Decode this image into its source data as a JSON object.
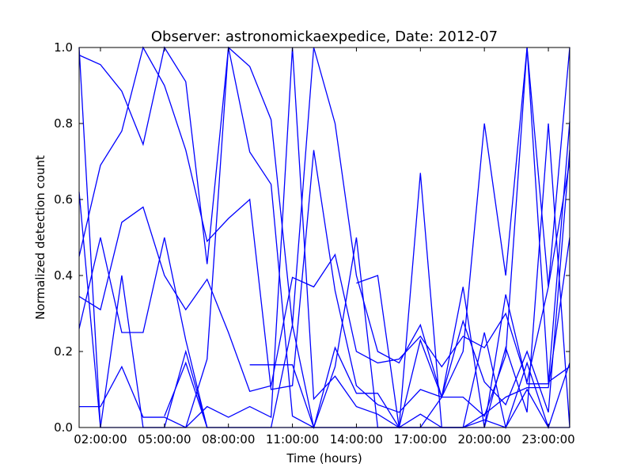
{
  "chart_data": {
    "type": "line",
    "title": "Observer: astronomickaexpedice, Date: 2012-07",
    "xlabel": "Time (hours)",
    "ylabel": "Normalized detection count",
    "xlim": [
      1,
      24
    ],
    "ylim": [
      0,
      1
    ],
    "x_ticks": [
      2,
      5,
      8,
      11,
      14,
      17,
      20,
      23
    ],
    "x_tick_labels": [
      "02:00:00",
      "05:00:00",
      "08:00:00",
      "11:00:00",
      "14:00:00",
      "17:00:00",
      "20:00:00",
      "23:00:00"
    ],
    "y_ticks": [
      0,
      0.2,
      0.4,
      0.6,
      0.8,
      1.0
    ],
    "y_tick_labels": [
      "0.0",
      "0.2",
      "0.4",
      "0.6",
      "0.8",
      "1.0"
    ],
    "line_color": "#0000ff",
    "series": [
      {
        "name": "series-1",
        "x": [
          1,
          2,
          3,
          4,
          5,
          6,
          7,
          8,
          9,
          10,
          11,
          12,
          13,
          14,
          15,
          16,
          17,
          18,
          19,
          20,
          21,
          22,
          23,
          24
        ],
        "values": [
          0.98,
          0.955,
          0.885,
          0.745,
          1.0,
          0.91,
          0.43,
          1.0,
          0.95,
          0.81,
          0.27,
          1.0,
          0.8,
          0.4,
          0.2,
          0.17,
          0.27,
          0.08,
          0.2,
          0.8,
          0.4,
          1.0,
          0.37,
          1.0
        ]
      },
      {
        "name": "series-2",
        "x": [
          1,
          2,
          3,
          4,
          5,
          6,
          7,
          8,
          9,
          10,
          11,
          12,
          13,
          14,
          15,
          16,
          17,
          18,
          19,
          20,
          21,
          22,
          23,
          24
        ],
        "values": [
          0.45,
          0.69,
          0.78,
          1.0,
          0.9,
          0.73,
          0.49,
          0.55,
          0.6,
          0.1,
          0.11,
          0.73,
          0.36,
          0.11,
          0.06,
          0.04,
          0.1,
          0.08,
          0.28,
          0.12,
          0.06,
          0.2,
          0.04,
          0.73
        ]
      },
      {
        "name": "series-3",
        "x": [
          1,
          2,
          3,
          4,
          5,
          6,
          7,
          8,
          9,
          10,
          11,
          12,
          13,
          14,
          15,
          16,
          17,
          18,
          19,
          20,
          21,
          22,
          23,
          24
        ],
        "values": [
          0.345,
          0.31,
          0.54,
          0.58,
          0.4,
          0.31,
          0.39,
          0.25,
          0.095,
          0.11,
          0.395,
          0.37,
          0.455,
          0.2,
          0.17,
          0.18,
          0.24,
          0.16,
          0.24,
          0.21,
          0.3,
          0.12,
          0.37,
          0.7
        ]
      },
      {
        "name": "series-4",
        "x": [
          1,
          2,
          3,
          4,
          5,
          6,
          7,
          8,
          9,
          10,
          11,
          12,
          13,
          14,
          15,
          16,
          17,
          18,
          19,
          20,
          21,
          22,
          23,
          24
        ],
        "values": [
          0.26,
          0.5,
          0.25,
          0.25,
          0.5,
          0.23,
          0.0,
          0.0,
          0.0,
          0.0,
          0.27,
          0.0,
          0.0,
          0.0,
          0.0,
          0.0,
          0.0,
          0.0,
          0.0,
          0.25,
          0.0,
          0.17,
          0.0,
          0.17
        ]
      },
      {
        "name": "series-5",
        "x": [
          1,
          2,
          3,
          4,
          5,
          6,
          7,
          8,
          9,
          10,
          11,
          12,
          13,
          14,
          15,
          16,
          17,
          18,
          19,
          20,
          21,
          22,
          23,
          24
        ],
        "values": [
          0.62,
          0.0,
          0.4,
          0.0,
          0.0,
          0.0,
          0.18,
          1.0,
          0.725,
          0.64,
          0.03,
          0.0,
          0.16,
          0.5,
          0.0,
          0.0,
          0.67,
          0.0,
          0.0,
          0.0,
          0.21,
          0.04,
          0.8,
          0.0
        ]
      },
      {
        "name": "series-6",
        "x": [
          1,
          2,
          3,
          4,
          5,
          6,
          7,
          8,
          9,
          10,
          11,
          12,
          13,
          14,
          15,
          16,
          17,
          18,
          19,
          20,
          21,
          22,
          23,
          24
        ],
        "values": [
          0.055,
          0.055,
          0.16,
          0.027,
          0.027,
          0.0,
          0.055,
          0.027,
          0.055,
          0.027,
          1.0,
          0.075,
          0.135,
          0.055,
          0.035,
          0.0,
          0.035,
          0.0,
          0.0,
          0.035,
          0.08,
          0.105,
          0.105,
          0.5
        ]
      },
      {
        "name": "series-7",
        "x": [
          1,
          2,
          3,
          4,
          5,
          6,
          7,
          8,
          9,
          10,
          11,
          12,
          13,
          14,
          15,
          16,
          17,
          18,
          19,
          20,
          21,
          22,
          23,
          24
        ],
        "values": [
          1.0,
          0.0,
          0.0,
          0.0,
          0.0,
          0.2,
          0.0,
          0.0,
          0.0,
          0.0,
          0.0,
          0.0,
          0.0,
          0.0,
          0.0,
          0.0,
          0.0,
          0.0,
          0.0,
          0.02,
          0.0,
          0.1,
          0.0,
          0.0
        ]
      },
      {
        "name": "series-8",
        "x": [
          5,
          6,
          7
        ],
        "values": [
          0.03,
          0.17,
          0.0
        ]
      },
      {
        "name": "series-9",
        "x": [
          9,
          10,
          11,
          12,
          13,
          14,
          15,
          16,
          17,
          18,
          19,
          20,
          21,
          22,
          23,
          24
        ],
        "values": [
          0.165,
          0.165,
          0.165,
          0.0,
          0.21,
          0.09,
          0.09,
          0.0,
          0.23,
          0.08,
          0.08,
          0.03,
          0.19,
          1.0,
          0.12,
          0.16
        ]
      },
      {
        "name": "series-10",
        "x": [
          14,
          15,
          16,
          17,
          18,
          19,
          20,
          21,
          22,
          23,
          24
        ],
        "values": [
          0.38,
          0.4,
          0.0,
          0.0,
          0.08,
          0.37,
          0.0,
          0.35,
          0.115,
          0.115,
          0.805
        ]
      }
    ]
  }
}
